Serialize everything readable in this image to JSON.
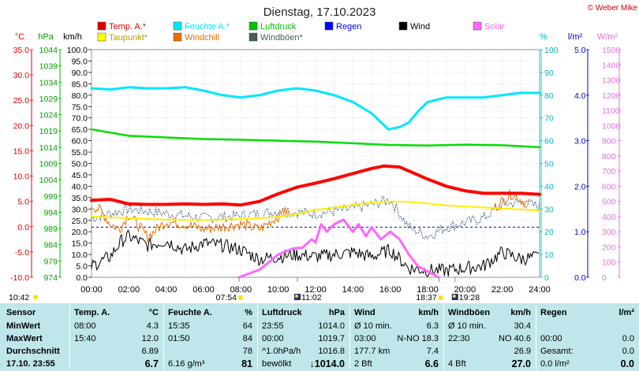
{
  "chart_data": {
    "type": "line",
    "title": "Dienstag, 17.10.2023",
    "watermark": "© Weber Mike",
    "x": {
      "range_hours": [
        0,
        24
      ],
      "tick_labels": [
        "00:00",
        "02:00",
        "04:00",
        "06:00",
        "08:00",
        "10:00",
        "12:00",
        "14:00",
        "16:00",
        "18:00",
        "20:00",
        "22:00",
        "24:00"
      ]
    },
    "axes": {
      "temp": {
        "unit": "°C",
        "range": [
          -10,
          35
        ],
        "ticks": [
          "35.0",
          "30.0",
          "25.0",
          "20.0",
          "15.0",
          "10.0",
          "5.0",
          "0.0",
          "-5.0",
          "-10.0"
        ],
        "color": "#e00000"
      },
      "pressure": {
        "unit": "hPa",
        "range": [
          974,
          1044
        ],
        "ticks": [
          "1044",
          "1039",
          "1034",
          "1029",
          "1024",
          "1019",
          "1014",
          "1009",
          "1004",
          "999",
          "994",
          "989",
          "984",
          "979",
          "974"
        ],
        "color": "#00a000"
      },
      "wind": {
        "unit": "km/h",
        "range": [
          0,
          100
        ],
        "ticks": [
          "100.0",
          "95.0",
          "90.0",
          "85.0",
          "80.0",
          "75.0",
          "70.0",
          "65.0",
          "60.0",
          "55.0",
          "50.0",
          "45.0",
          "40.0",
          "35.0",
          "30.0",
          "25.0",
          "20.0",
          "15.0",
          "10.0",
          "5.0",
          "0.0"
        ],
        "color": "#000000"
      },
      "humidity": {
        "unit": "%",
        "range": [
          0,
          100
        ],
        "ticks": [
          "100",
          "90",
          "80",
          "70",
          "60",
          "50",
          "40",
          "30",
          "20",
          "10",
          "0"
        ],
        "color": "#00b8c8"
      },
      "rain": {
        "unit": "l/m²",
        "range": [
          0,
          5
        ],
        "ticks": [
          "5.0",
          "4.0",
          "3.0",
          "2.0",
          "1.0",
          "0.0"
        ],
        "color": "#0000c0"
      },
      "solar": {
        "unit": "W/m²",
        "range": [
          0,
          1500
        ],
        "ticks": [
          "1500",
          "1400",
          "1300",
          "1200",
          "1100",
          "1000",
          "900",
          "800",
          "700",
          "600",
          "500",
          "400",
          "300",
          "200",
          "100",
          "0"
        ],
        "color": "#e070e0"
      }
    },
    "legend": [
      {
        "name": "Temp. A.*",
        "color": "#e00000"
      },
      {
        "name": "Feuchte A.*",
        "color": "#00e5ff"
      },
      {
        "name": "Luftdruck",
        "color": "#00c000"
      },
      {
        "name": "Regen",
        "color": "#0000ff"
      },
      {
        "name": "Wind",
        "color": "#000000"
      },
      {
        "name": "Solar",
        "color": "#ff66ff"
      },
      {
        "name": "Taupunkt*",
        "color": "#ffff00"
      },
      {
        "name": "Windchill",
        "color": "#e87000"
      },
      {
        "name": "Windböen*",
        "color": "#406060"
      }
    ],
    "series": [
      {
        "name": "Temp. A.*",
        "axis": "temp",
        "color": "#ff0000",
        "width": 4,
        "points": [
          [
            0,
            5.2
          ],
          [
            1,
            5.4
          ],
          [
            2,
            4.5
          ],
          [
            3,
            4.4
          ],
          [
            4,
            4.4
          ],
          [
            5,
            4.5
          ],
          [
            6,
            4.4
          ],
          [
            7,
            4.5
          ],
          [
            8,
            4.3
          ],
          [
            9,
            5
          ],
          [
            10,
            6.5
          ],
          [
            11,
            7.8
          ],
          [
            12,
            8.6
          ],
          [
            13,
            9.5
          ],
          [
            14,
            10.5
          ],
          [
            15,
            11.5
          ],
          [
            15.67,
            12
          ],
          [
            16.5,
            11.8
          ],
          [
            17,
            11
          ],
          [
            18,
            9.4
          ],
          [
            19,
            8
          ],
          [
            20,
            7.1
          ],
          [
            21,
            6.6
          ],
          [
            22,
            6.6
          ],
          [
            23,
            6.6
          ],
          [
            24,
            6.4
          ]
        ]
      },
      {
        "name": "Feuchte A.*",
        "axis": "humidity",
        "color": "#00e5ff",
        "width": 3,
        "points": [
          [
            0,
            83
          ],
          [
            1,
            82.5
          ],
          [
            2,
            83.5
          ],
          [
            3,
            83
          ],
          [
            4,
            83
          ],
          [
            5,
            83.5
          ],
          [
            6,
            82
          ],
          [
            7,
            80
          ],
          [
            8,
            79
          ],
          [
            9,
            80
          ],
          [
            10,
            82
          ],
          [
            11,
            83
          ],
          [
            12,
            82
          ],
          [
            13,
            80
          ],
          [
            14,
            77
          ],
          [
            15,
            72
          ],
          [
            15.9,
            65
          ],
          [
            16.5,
            66
          ],
          [
            17,
            68
          ],
          [
            17.5,
            73
          ],
          [
            18,
            77
          ],
          [
            19,
            79
          ],
          [
            20,
            79
          ],
          [
            21,
            79
          ],
          [
            22,
            80
          ],
          [
            23,
            81
          ],
          [
            24,
            81
          ]
        ]
      },
      {
        "name": "Luftdruck",
        "axis": "pressure",
        "color": "#00dd00",
        "width": 2.5,
        "points": [
          [
            0,
            1019.5
          ],
          [
            1,
            1018.5
          ],
          [
            2,
            1017.5
          ],
          [
            4,
            1017
          ],
          [
            6,
            1016.5
          ],
          [
            8,
            1016.3
          ],
          [
            10,
            1016
          ],
          [
            12,
            1015.7
          ],
          [
            14,
            1015.2
          ],
          [
            16,
            1014.7
          ],
          [
            18,
            1014.5
          ],
          [
            20,
            1014.8
          ],
          [
            22,
            1014.6
          ],
          [
            24,
            1014.0
          ]
        ]
      },
      {
        "name": "Taupunkt*",
        "axis": "temp",
        "color": "#ffee00",
        "width": 2,
        "points": [
          [
            0,
            2.0
          ],
          [
            2,
            1.7
          ],
          [
            4,
            1.4
          ],
          [
            6,
            1.3
          ],
          [
            8,
            1.5
          ],
          [
            10,
            1.9
          ],
          [
            11,
            2.5
          ],
          [
            12,
            3.3
          ],
          [
            13,
            3.8
          ],
          [
            14,
            4.3
          ],
          [
            15,
            4.8
          ],
          [
            16,
            5.0
          ],
          [
            17,
            4.9
          ],
          [
            18,
            4.6
          ],
          [
            19,
            4.2
          ],
          [
            20,
            4.0
          ],
          [
            21,
            3.8
          ],
          [
            22,
            3.6
          ],
          [
            23,
            3.4
          ],
          [
            24,
            3.2
          ]
        ]
      },
      {
        "name": "Windchill",
        "axis": "temp",
        "color": "#e87000",
        "width": 1,
        "noisy": true,
        "points": [
          [
            0,
            4.2
          ],
          [
            0.5,
            3.2
          ],
          [
            1,
            0.5
          ],
          [
            1.5,
            -0.5
          ],
          [
            2,
            2.5
          ],
          [
            3,
            -2
          ],
          [
            4,
            1
          ],
          [
            5,
            0.5
          ],
          [
            6,
            -0.5
          ],
          [
            7,
            0
          ],
          [
            8,
            0.5
          ],
          [
            9,
            -0.5
          ],
          [
            10,
            2
          ],
          [
            10.5,
            3.2
          ],
          [
            21.5,
            3.5
          ],
          [
            22.5,
            6.5
          ],
          [
            23.5,
            4.2
          ]
        ]
      },
      {
        "name": "Wind",
        "axis": "wind",
        "color": "#000000",
        "width": 1,
        "noisy": true,
        "points": [
          [
            0,
            5
          ],
          [
            1,
            9
          ],
          [
            1.6,
            16
          ],
          [
            2,
            18
          ],
          [
            3,
            14
          ],
          [
            4,
            16
          ],
          [
            5,
            12
          ],
          [
            6,
            15
          ],
          [
            7,
            14
          ],
          [
            8,
            12
          ],
          [
            9,
            8
          ],
          [
            10,
            9
          ],
          [
            11,
            10
          ],
          [
            12,
            9
          ],
          [
            13,
            10
          ],
          [
            14,
            11
          ],
          [
            15,
            9
          ],
          [
            16,
            12
          ],
          [
            16.5,
            8
          ],
          [
            17,
            4
          ],
          [
            18,
            3
          ],
          [
            19,
            3
          ],
          [
            20,
            4
          ],
          [
            21,
            5
          ],
          [
            22,
            11
          ],
          [
            23,
            8
          ],
          [
            24,
            9
          ]
        ]
      },
      {
        "name": "Windböen*",
        "axis": "wind",
        "color": "#406080",
        "width": 1,
        "dotted": true,
        "points": [
          [
            0,
            26
          ],
          [
            2,
            30
          ],
          [
            4,
            28
          ],
          [
            6,
            26
          ],
          [
            8,
            27
          ],
          [
            10,
            29
          ],
          [
            12,
            28
          ],
          [
            14,
            30
          ],
          [
            16,
            34
          ],
          [
            17,
            22
          ],
          [
            18,
            18
          ],
          [
            19,
            22
          ],
          [
            20,
            24
          ],
          [
            21,
            26
          ],
          [
            22,
            32
          ],
          [
            23,
            33
          ],
          [
            24,
            31
          ]
        ]
      },
      {
        "name": "Solar",
        "axis": "solar",
        "color": "#ff66ff",
        "width": 3,
        "points": [
          [
            7.9,
            0
          ],
          [
            9,
            50
          ],
          [
            10,
            150
          ],
          [
            10.8,
            190
          ],
          [
            11.3,
            195
          ],
          [
            11.8,
            250
          ],
          [
            12,
            230
          ],
          [
            12.3,
            350
          ],
          [
            12.6,
            300
          ],
          [
            13,
            350
          ],
          [
            13.5,
            380
          ],
          [
            14,
            300
          ],
          [
            14.3,
            350
          ],
          [
            14.7,
            270
          ],
          [
            15,
            330
          ],
          [
            15.5,
            250
          ],
          [
            16,
            300
          ],
          [
            16.5,
            250
          ],
          [
            17,
            150
          ],
          [
            17.5,
            70
          ],
          [
            18.3,
            20
          ],
          [
            18.6,
            0
          ]
        ]
      }
    ],
    "reference_line": {
      "axis": "humidity",
      "value": 22,
      "color": "#0000c0",
      "style": "dashed"
    },
    "sun_events": [
      {
        "label": "07:54",
        "hour": 7.9
      },
      {
        "label": "11:02",
        "hour": 11.03
      },
      {
        "label": "18:37",
        "hour": 18.62
      },
      {
        "label": "19:28",
        "hour": 19.47
      }
    ],
    "left_time": "10:42"
  },
  "summary": {
    "row_labels": [
      "Sensor",
      "MinWert",
      "MaxWert",
      "Durchschnitt",
      "17.10. 23:55"
    ],
    "columns": [
      {
        "header": "Temp. A.",
        "unit": "°C",
        "rows": [
          [
            "08:00",
            "4.3"
          ],
          [
            "15:40",
            "12.0"
          ],
          [
            "",
            "6.89"
          ],
          [
            "",
            "6.7"
          ]
        ]
      },
      {
        "header": "Feuchte A.",
        "unit": "%",
        "rows": [
          [
            "15:35",
            "64"
          ],
          [
            "01:50",
            "84"
          ],
          [
            "",
            "78"
          ],
          [
            "6.16 g/m³",
            "81"
          ]
        ]
      },
      {
        "header": "Luftdruck",
        "unit": "hPa",
        "rows": [
          [
            "23:55",
            "1014.0"
          ],
          [
            "00:00",
            "1019.7"
          ],
          [
            "^1.0hPa/h",
            "1016.8"
          ],
          [
            "bewölkt",
            "↓1014.0"
          ]
        ]
      },
      {
        "header": "Wind",
        "unit": "km/h",
        "rows": [
          [
            "Ø 10 min.",
            "6.3"
          ],
          [
            "03:00",
            "N-NO 18.3"
          ],
          [
            "177.7 km",
            "7.4"
          ],
          [
            "2 Bft",
            "6.6"
          ]
        ]
      },
      {
        "header": "Windböen",
        "unit": "km/h",
        "rows": [
          [
            "Ø 10 min.",
            "30.4"
          ],
          [
            "22:30",
            "NO 40.6"
          ],
          [
            "",
            "26.9"
          ],
          [
            "4 Bft",
            "27.0"
          ]
        ]
      },
      {
        "header": "Regen",
        "unit": "l/m²",
        "rows": [
          [
            "",
            ""
          ],
          [
            "00:00",
            "0.0"
          ],
          [
            "Gesamt:",
            "0.0"
          ],
          [
            "0.0 l/m²",
            "0.0"
          ]
        ]
      }
    ]
  }
}
